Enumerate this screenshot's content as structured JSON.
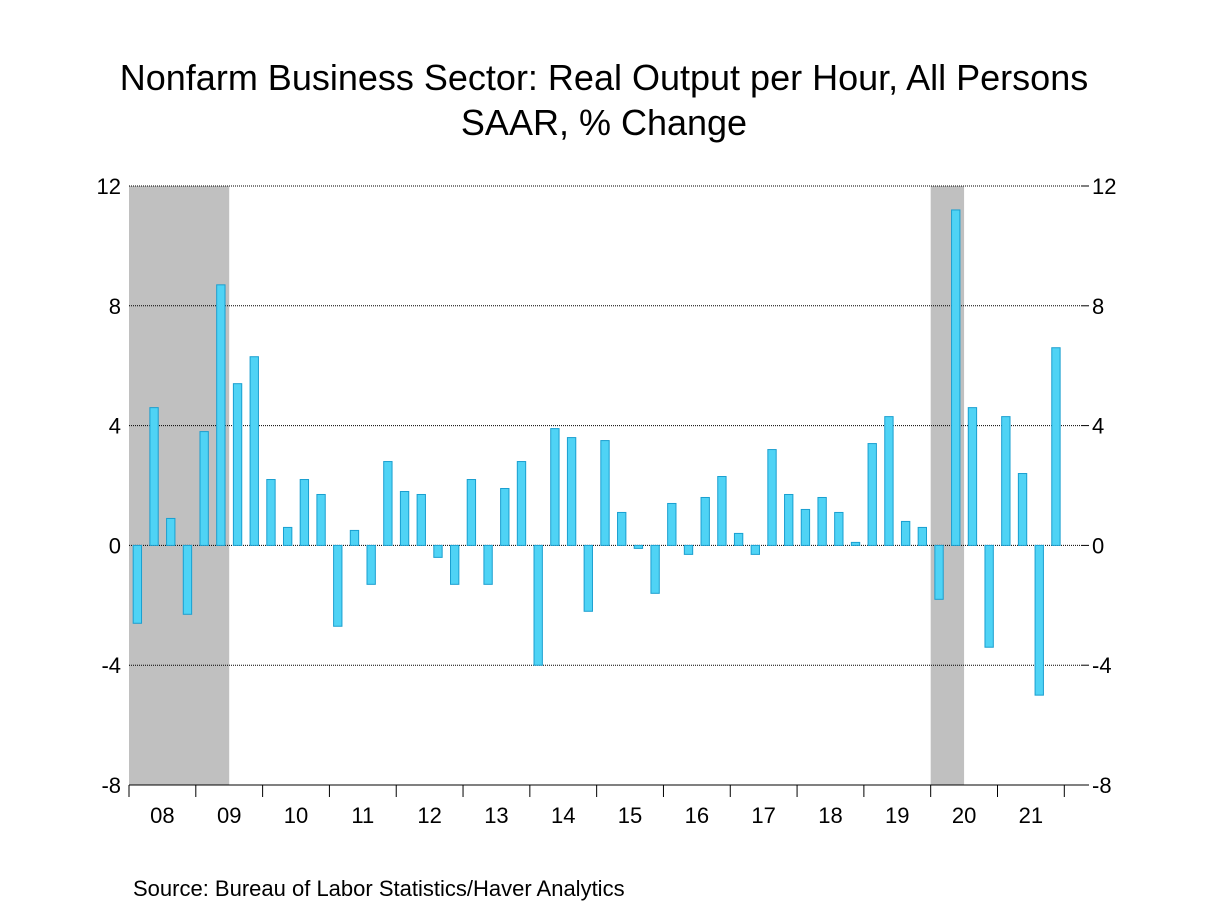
{
  "title": "Nonfarm Business Sector: Real Output per Hour, All Persons",
  "subtitle": "SAAR, % Change",
  "source": "Source:  Bureau of Labor Statistics/Haver Analytics",
  "chart_data": {
    "type": "bar",
    "ylim": [
      -8,
      12
    ],
    "yticks": [
      "12",
      "8",
      "4",
      "0",
      "-4",
      "-8"
    ],
    "ytick_values": [
      12,
      8,
      4,
      0,
      -4,
      -8
    ],
    "grid": true,
    "years": [
      "08",
      "09",
      "10",
      "11",
      "12",
      "13",
      "14",
      "15",
      "16",
      "17",
      "18",
      "19",
      "20",
      "21"
    ],
    "x_start": 2008.0,
    "x_end": 2022.25,
    "quarters": [
      "2008Q1",
      "2008Q2",
      "2008Q3",
      "2008Q4",
      "2009Q1",
      "2009Q2",
      "2009Q3",
      "2009Q4",
      "2010Q1",
      "2010Q2",
      "2010Q3",
      "2010Q4",
      "2011Q1",
      "2011Q2",
      "2011Q3",
      "2011Q4",
      "2012Q1",
      "2012Q2",
      "2012Q3",
      "2012Q4",
      "2013Q1",
      "2013Q2",
      "2013Q3",
      "2013Q4",
      "2014Q1",
      "2014Q2",
      "2014Q3",
      "2014Q4",
      "2015Q1",
      "2015Q2",
      "2015Q3",
      "2015Q4",
      "2016Q1",
      "2016Q2",
      "2016Q3",
      "2016Q4",
      "2017Q1",
      "2017Q2",
      "2017Q3",
      "2017Q4",
      "2018Q1",
      "2018Q2",
      "2018Q3",
      "2018Q4",
      "2019Q1",
      "2019Q2",
      "2019Q3",
      "2019Q4",
      "2020Q1",
      "2020Q2",
      "2020Q3",
      "2020Q4",
      "2021Q1",
      "2021Q2",
      "2021Q3",
      "2021Q4"
    ],
    "values": [
      -2.6,
      4.6,
      0.9,
      -2.3,
      3.8,
      8.7,
      5.4,
      6.3,
      2.2,
      0.6,
      2.2,
      1.7,
      -2.7,
      0.5,
      -1.3,
      2.8,
      1.8,
      1.7,
      -0.4,
      -1.3,
      2.2,
      -1.3,
      1.9,
      2.8,
      -4.0,
      3.9,
      3.6,
      -2.2,
      3.5,
      1.1,
      -0.1,
      -1.6,
      1.4,
      -0.3,
      1.6,
      2.3,
      0.4,
      -0.3,
      3.2,
      1.7,
      1.2,
      1.6,
      1.1,
      0.1,
      3.4,
      4.3,
      0.8,
      0.6,
      -1.8,
      11.2,
      4.6,
      -3.4,
      4.3,
      2.4,
      -5.0,
      6.6
    ],
    "recessions": [
      [
        "2008Q1",
        "2009Q2"
      ],
      [
        "2020Q1",
        "2020Q2"
      ]
    ],
    "colors": {
      "bar_fill": "#4fd3f5",
      "bar_edge": "#1a9fd0",
      "recession": "#c0c0c0",
      "axis": "#000000"
    }
  }
}
